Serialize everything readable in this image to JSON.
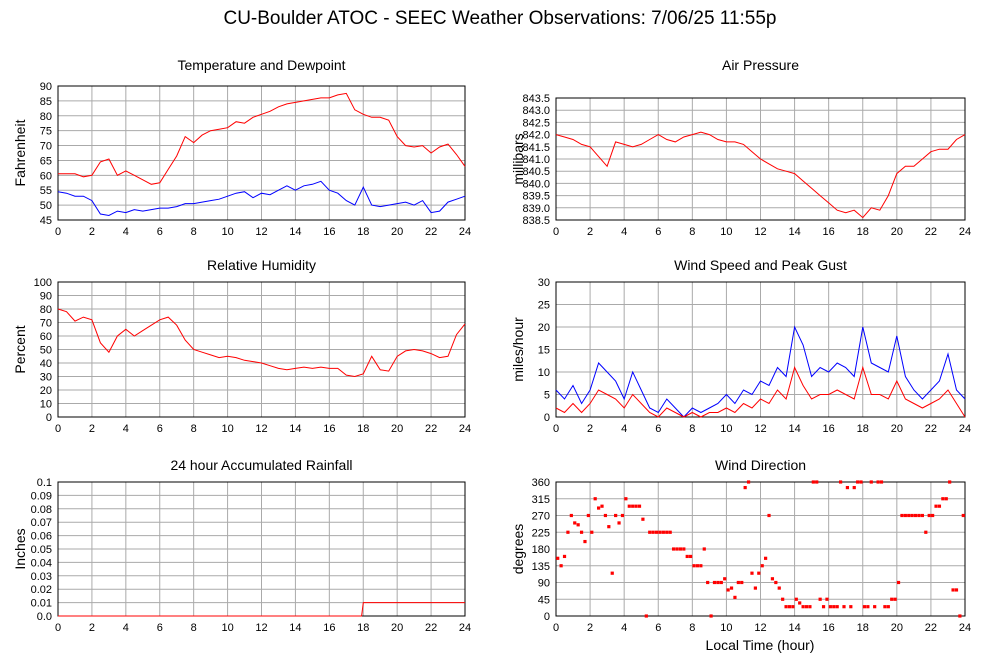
{
  "page": {
    "title": "CU-Boulder ATOC - SEEC Weather Observations: 7/06/25 11:55p",
    "x_axis_caption": "Local Time (hour)"
  },
  "colors": {
    "primary": "#ff0000",
    "secondary": "#0000ff",
    "grid": "#aaaaaa",
    "frame": "#000000"
  },
  "chart_data": [
    {
      "type": "line",
      "title": "Temperature and Dewpoint",
      "xlabel": "",
      "ylabel": "Fahrenheit",
      "xlim": [
        0,
        24
      ],
      "ylim": [
        45,
        90
      ],
      "x_ticks": [
        0,
        2,
        4,
        6,
        8,
        10,
        12,
        14,
        16,
        18,
        20,
        22,
        24
      ],
      "y_ticks": [
        "45",
        "50",
        "55",
        "60",
        "65",
        "70",
        "75",
        "80",
        "85",
        "90"
      ],
      "grid": true,
      "series": [
        {
          "color": "#ff0000",
          "x": [
            0,
            0.5,
            1,
            1.5,
            2,
            2.5,
            3,
            3.5,
            4,
            4.5,
            5,
            5.5,
            6,
            6.5,
            7,
            7.5,
            8,
            8.5,
            9,
            9.5,
            10,
            10.5,
            11,
            11.5,
            12,
            12.5,
            13,
            13.5,
            14,
            14.5,
            15,
            15.5,
            16,
            16.5,
            17,
            17.5,
            18,
            18.5,
            19,
            19.5,
            20,
            20.5,
            21,
            21.5,
            22,
            22.5,
            23,
            23.5,
            24
          ],
          "y": [
            60.5,
            60.5,
            60.5,
            59.5,
            60,
            64.5,
            65.5,
            60,
            61.5,
            60,
            58.5,
            57,
            57.5,
            62,
            66.5,
            73,
            71,
            73.5,
            75,
            75.5,
            76,
            78,
            77.5,
            79.5,
            80.5,
            81.5,
            83,
            84,
            84.5,
            85,
            85.5,
            86,
            86,
            87,
            87.5,
            82,
            80.5,
            79.5,
            79.5,
            78.5,
            73,
            70,
            69.5,
            70,
            67.5,
            69.5,
            70.5,
            67,
            63
          ]
        },
        {
          "color": "#0000ff",
          "x": [
            0,
            0.5,
            1,
            1.5,
            2,
            2.5,
            3,
            3.5,
            4,
            4.5,
            5,
            5.5,
            6,
            6.5,
            7,
            7.5,
            8,
            8.5,
            9,
            9.5,
            10,
            10.5,
            11,
            11.5,
            12,
            12.5,
            13,
            13.5,
            14,
            14.5,
            15,
            15.5,
            16,
            16.5,
            17,
            17.5,
            18,
            18.5,
            19,
            19.5,
            20,
            20.5,
            21,
            21.5,
            22,
            22.5,
            23,
            23.5,
            24
          ],
          "y": [
            54.5,
            54,
            53,
            53,
            51.5,
            47,
            46.5,
            48,
            47.5,
            48.5,
            48,
            48.5,
            49,
            49,
            49.5,
            50.5,
            50.5,
            51,
            51.5,
            52,
            53,
            54,
            54.5,
            52.5,
            54,
            53.5,
            55,
            56.5,
            55,
            56.5,
            57,
            58,
            55,
            54,
            51.5,
            50,
            56,
            50,
            49.5,
            50,
            50.5,
            51,
            50,
            51.5,
            47.5,
            48,
            51,
            52,
            53
          ]
        }
      ]
    },
    {
      "type": "line",
      "title": "Air Pressure",
      "xlabel": "",
      "ylabel": "millibars",
      "xlim": [
        0,
        24
      ],
      "ylim": [
        838.5,
        843.5
      ],
      "x_ticks": [
        0,
        2,
        4,
        6,
        8,
        10,
        12,
        14,
        16,
        18,
        20,
        22,
        24
      ],
      "y_ticks": [
        "838.5",
        "839.0",
        "839.5",
        "840.0",
        "840.5",
        "841.0",
        "841.5",
        "842.0",
        "842.5",
        "843.0",
        "843.5"
      ],
      "grid": true,
      "series": [
        {
          "color": "#ff0000",
          "x": [
            0,
            0.5,
            1,
            1.5,
            2,
            2.5,
            3,
            3.5,
            4,
            4.5,
            5,
            5.5,
            6,
            6.5,
            7,
            7.5,
            8,
            8.5,
            9,
            9.5,
            10,
            10.5,
            11,
            11.5,
            12,
            12.5,
            13,
            13.5,
            14,
            14.5,
            15,
            15.5,
            16,
            16.5,
            17,
            17.5,
            18,
            18.5,
            19,
            19.5,
            20,
            20.5,
            21,
            21.5,
            22,
            22.5,
            23,
            23.5,
            24
          ],
          "y": [
            842,
            841.9,
            841.8,
            841.6,
            841.5,
            841.1,
            840.7,
            841.7,
            841.6,
            841.5,
            841.6,
            841.8,
            842,
            841.8,
            841.7,
            841.9,
            842,
            842.1,
            842,
            841.8,
            841.7,
            841.7,
            841.6,
            841.3,
            841,
            840.8,
            840.6,
            840.5,
            840.4,
            840.1,
            839.8,
            839.5,
            839.2,
            838.9,
            838.8,
            838.9,
            838.6,
            839,
            838.9,
            839.5,
            840.4,
            840.7,
            840.7,
            841,
            841.3,
            841.4,
            841.4,
            841.8,
            842
          ]
        }
      ]
    },
    {
      "type": "line",
      "title": "Relative Humidity",
      "xlabel": "",
      "ylabel": "Percent",
      "xlim": [
        0,
        24
      ],
      "ylim": [
        0,
        100
      ],
      "x_ticks": [
        0,
        2,
        4,
        6,
        8,
        10,
        12,
        14,
        16,
        18,
        20,
        22,
        24
      ],
      "y_ticks": [
        "0",
        "10",
        "20",
        "30",
        "40",
        "50",
        "60",
        "70",
        "80",
        "90",
        "100"
      ],
      "grid": true,
      "series": [
        {
          "color": "#ff0000",
          "x": [
            0,
            0.5,
            1,
            1.5,
            2,
            2.5,
            3,
            3.5,
            4,
            4.5,
            5,
            5.5,
            6,
            6.5,
            7,
            7.5,
            8,
            8.5,
            9,
            9.5,
            10,
            10.5,
            11,
            11.5,
            12,
            12.5,
            13,
            13.5,
            14,
            14.5,
            15,
            15.5,
            16,
            16.5,
            17,
            17.5,
            18,
            18.5,
            19,
            19.5,
            20,
            20.5,
            21,
            21.5,
            22,
            22.5,
            23,
            23.5,
            24
          ],
          "y": [
            80,
            78,
            71,
            74,
            72,
            55,
            48,
            60,
            65,
            60,
            64,
            68,
            72,
            74,
            68,
            57,
            50,
            48,
            46,
            44,
            45,
            44,
            42,
            41,
            40,
            38,
            36,
            35,
            36,
            37,
            36,
            37,
            36,
            36,
            31,
            30,
            32,
            45,
            35,
            34,
            45,
            49,
            50,
            49,
            47,
            44,
            45,
            61,
            69
          ]
        }
      ]
    },
    {
      "type": "line",
      "title": "Wind Speed and Peak Gust",
      "xlabel": "",
      "ylabel": "miles/hour",
      "xlim": [
        0,
        24
      ],
      "ylim": [
        0,
        30
      ],
      "x_ticks": [
        0,
        2,
        4,
        6,
        8,
        10,
        12,
        14,
        16,
        18,
        20,
        22,
        24
      ],
      "y_ticks": [
        "0",
        "5",
        "10",
        "15",
        "20",
        "25",
        "30"
      ],
      "grid": true,
      "series": [
        {
          "color": "#0000ff",
          "x": [
            0,
            0.5,
            1,
            1.5,
            2,
            2.5,
            3,
            3.5,
            4,
            4.5,
            5,
            5.5,
            6,
            6.5,
            7,
            7.5,
            8,
            8.5,
            9,
            9.5,
            10,
            10.5,
            11,
            11.5,
            12,
            12.5,
            13,
            13.5,
            14,
            14.5,
            15,
            15.5,
            16,
            16.5,
            17,
            17.5,
            18,
            18.5,
            19,
            19.5,
            20,
            20.5,
            21,
            21.5,
            22,
            22.5,
            23,
            23.5,
            24
          ],
          "y": [
            6,
            4,
            7,
            3,
            6,
            12,
            10,
            8,
            4,
            10,
            6,
            2,
            1,
            4,
            2,
            0,
            2,
            1,
            2,
            3,
            5,
            3,
            6,
            5,
            8,
            7,
            11,
            9,
            20,
            16,
            9,
            11,
            10,
            12,
            11,
            9,
            20,
            12,
            11,
            10,
            18,
            9,
            6,
            4,
            6,
            8,
            14,
            6,
            4
          ]
        },
        {
          "color": "#ff0000",
          "x": [
            0,
            0.5,
            1,
            1.5,
            2,
            2.5,
            3,
            3.5,
            4,
            4.5,
            5,
            5.5,
            6,
            6.5,
            7,
            7.5,
            8,
            8.5,
            9,
            9.5,
            10,
            10.5,
            11,
            11.5,
            12,
            12.5,
            13,
            13.5,
            14,
            14.5,
            15,
            15.5,
            16,
            16.5,
            17,
            17.5,
            18,
            18.5,
            19,
            19.5,
            20,
            20.5,
            21,
            21.5,
            22,
            22.5,
            23,
            23.5,
            24
          ],
          "y": [
            2,
            1,
            3,
            1,
            3,
            6,
            5,
            4,
            2,
            5,
            3,
            1,
            0,
            2,
            1,
            0,
            1,
            0,
            1,
            1,
            2,
            1,
            3,
            2,
            4,
            3,
            6,
            4,
            11,
            7,
            4,
            5,
            5,
            6,
            5,
            4,
            11,
            5,
            5,
            4,
            8,
            4,
            3,
            2,
            3,
            4,
            6,
            3,
            0
          ]
        }
      ]
    },
    {
      "type": "line",
      "title": "24 hour Accumulated Rainfall",
      "xlabel": "",
      "ylabel": "Inches",
      "xlim": [
        0,
        24
      ],
      "ylim": [
        0,
        0.1
      ],
      "x_ticks": [
        0,
        2,
        4,
        6,
        8,
        10,
        12,
        14,
        16,
        18,
        20,
        22,
        24
      ],
      "y_ticks": [
        "0.0",
        "0.01",
        "0.02",
        "0.03",
        "0.04",
        "0.05",
        "0.06",
        "0.07",
        "0.08",
        "0.09",
        "0.1"
      ],
      "grid": true,
      "series": [
        {
          "color": "#ff0000",
          "x": [
            0,
            17.9,
            18.0,
            24
          ],
          "y": [
            0,
            0,
            0.01,
            0.01
          ]
        }
      ]
    },
    {
      "type": "scatter",
      "title": "Wind Direction",
      "xlabel": "Local Time (hour)",
      "ylabel": "degrees",
      "xlim": [
        0,
        24
      ],
      "ylim": [
        0,
        360
      ],
      "x_ticks": [
        0,
        2,
        4,
        6,
        8,
        10,
        12,
        14,
        16,
        18,
        20,
        22,
        24
      ],
      "y_ticks": [
        "0",
        "45",
        "90",
        "135",
        "180",
        "225",
        "270",
        "315",
        "360"
      ],
      "grid": true,
      "series": [
        {
          "color": "#ff0000",
          "x": [
            0.1,
            0.3,
            0.5,
            0.7,
            0.9,
            1.1,
            1.3,
            1.5,
            1.7,
            1.9,
            2.1,
            2.3,
            2.5,
            2.7,
            2.9,
            3.1,
            3.3,
            3.5,
            3.7,
            3.9,
            4.1,
            4.3,
            4.5,
            4.7,
            4.9,
            5.1,
            5.3,
            5.5,
            5.7,
            5.9,
            6.1,
            6.3,
            6.5,
            6.7,
            6.9,
            7.1,
            7.3,
            7.5,
            7.7,
            7.9,
            8.1,
            8.3,
            8.5,
            8.7,
            8.9,
            9.1,
            9.3,
            9.5,
            9.7,
            9.9,
            10.1,
            10.3,
            10.5,
            10.7,
            10.9,
            11.1,
            11.3,
            11.5,
            11.7,
            11.9,
            12.1,
            12.3,
            12.5,
            12.7,
            12.9,
            13.1,
            13.3,
            13.5,
            13.7,
            13.9,
            14.1,
            14.3,
            14.5,
            14.7,
            14.9,
            15.1,
            15.3,
            15.5,
            15.7,
            15.9,
            16.1,
            16.3,
            16.5,
            16.7,
            16.9,
            17.1,
            17.3,
            17.5,
            17.7,
            17.9,
            18.1,
            18.3,
            18.5,
            18.7,
            18.9,
            19.1,
            19.3,
            19.5,
            19.7,
            19.9,
            20.1,
            20.3,
            20.5,
            20.7,
            20.9,
            21.1,
            21.3,
            21.5,
            21.7,
            21.9,
            22.1,
            22.3,
            22.5,
            22.7,
            22.9,
            23.1,
            23.3,
            23.5,
            23.7,
            23.9
          ],
          "y": [
            155,
            135,
            160,
            225,
            270,
            250,
            245,
            225,
            200,
            270,
            225,
            315,
            290,
            295,
            270,
            240,
            115,
            270,
            250,
            270,
            315,
            295,
            295,
            295,
            295,
            260,
            0,
            225,
            225,
            225,
            225,
            225,
            225,
            225,
            180,
            180,
            180,
            180,
            160,
            160,
            135,
            135,
            135,
            180,
            90,
            0,
            90,
            90,
            90,
            100,
            70,
            75,
            50,
            90,
            90,
            345,
            360,
            115,
            75,
            115,
            135,
            155,
            270,
            100,
            90,
            75,
            45,
            25,
            25,
            25,
            45,
            35,
            25,
            25,
            25,
            360,
            360,
            45,
            25,
            45,
            25,
            25,
            25,
            360,
            25,
            345,
            25,
            345,
            360,
            360,
            25,
            25,
            360,
            25,
            360,
            360,
            25,
            25,
            45,
            45,
            90,
            270,
            270,
            270,
            270,
            270,
            270,
            270,
            225,
            270,
            270,
            295,
            295,
            315,
            315,
            360,
            70,
            70,
            0,
            270
          ]
        }
      ]
    }
  ]
}
